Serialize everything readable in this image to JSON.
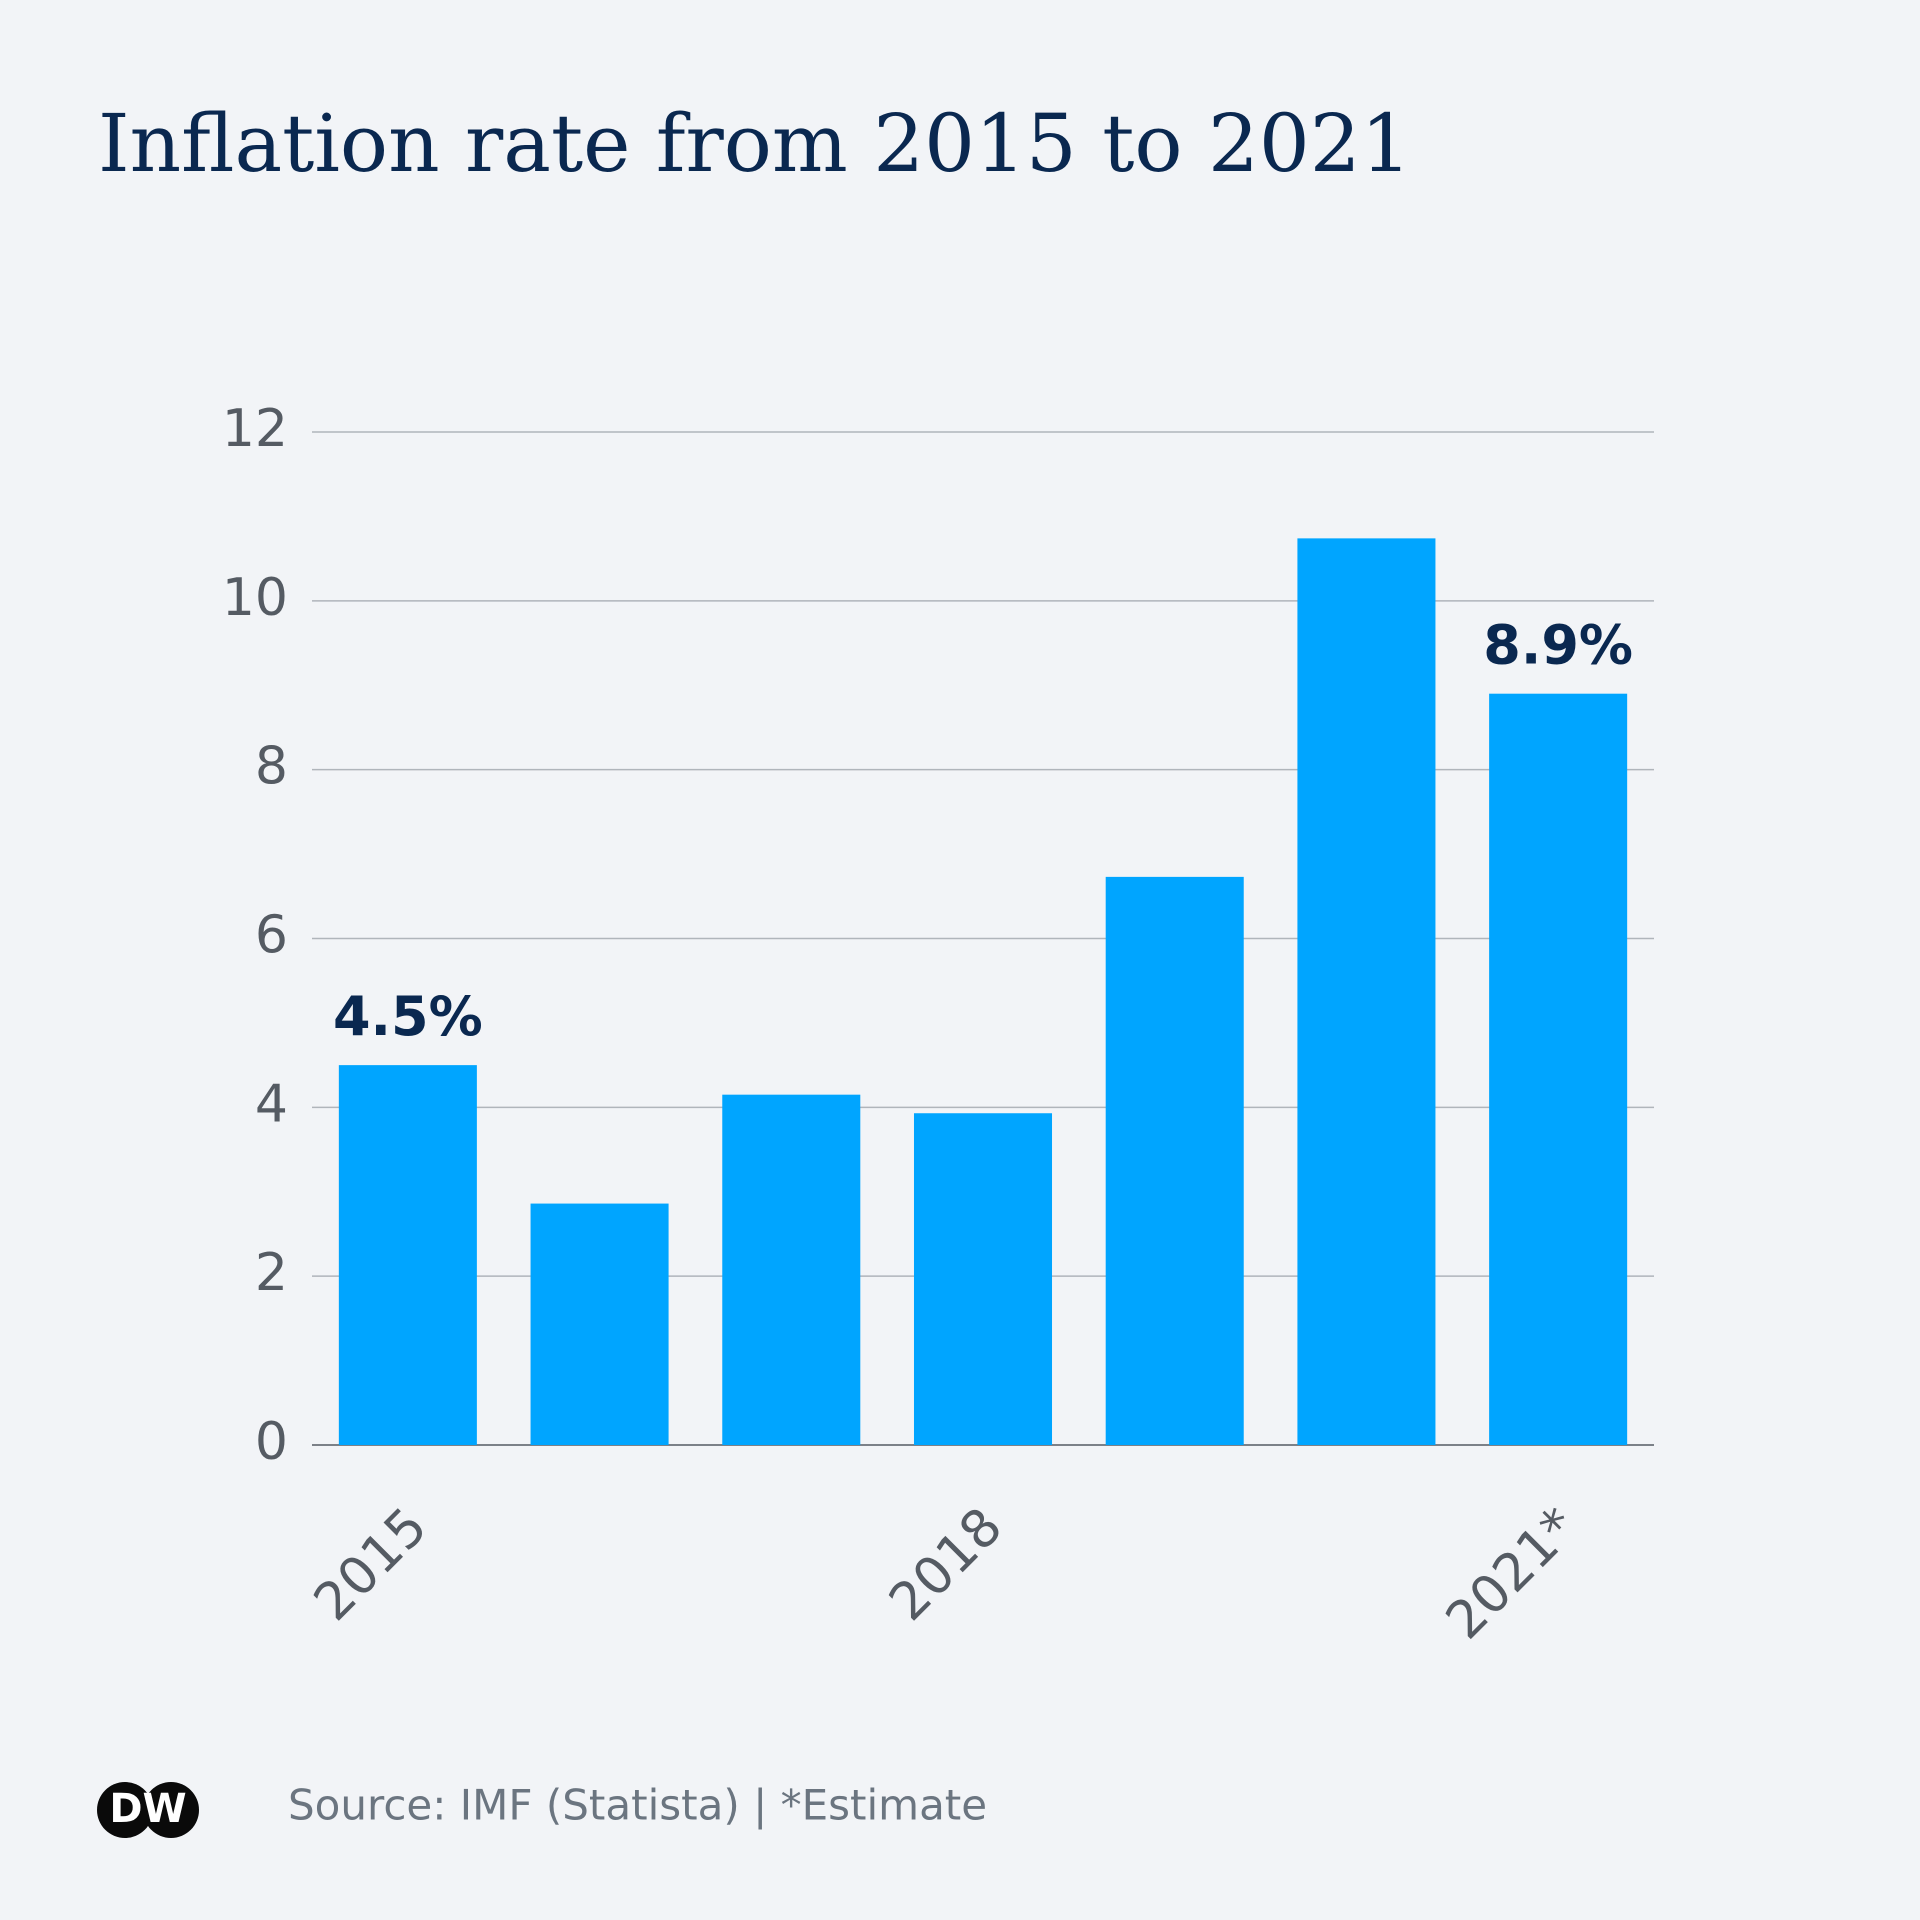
{
  "chart_data": {
    "type": "bar",
    "title": "Inflation rate from 2015 to 2021",
    "categories": [
      "2015",
      null,
      null,
      "2018",
      null,
      null,
      "2021*"
    ],
    "values": [
      4.5,
      2.86,
      4.15,
      3.93,
      6.73,
      10.74,
      8.9
    ],
    "value_labels": [
      "4.5%",
      null,
      null,
      null,
      null,
      null,
      "8.9%"
    ],
    "color": "#00a5ff",
    "ylim": [
      0,
      12
    ],
    "yticks": [
      0,
      2,
      4,
      6,
      8,
      10,
      12
    ],
    "grid": true,
    "source": "Source: IMF (Statista) | *Estimate",
    "logo": "DW"
  }
}
